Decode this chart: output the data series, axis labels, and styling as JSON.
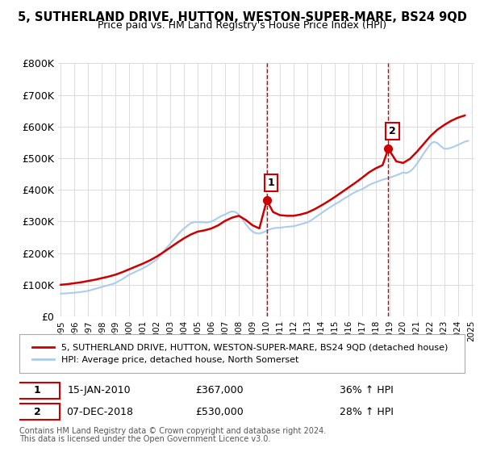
{
  "title": "5, SUTHERLAND DRIVE, HUTTON, WESTON-SUPER-MARE, BS24 9QD",
  "subtitle": "Price paid vs. HM Land Registry's House Price Index (HPI)",
  "ylabel": "",
  "xlabel": "",
  "ylim": [
    0,
    800000
  ],
  "yticks": [
    0,
    100000,
    200000,
    300000,
    400000,
    500000,
    600000,
    700000,
    800000
  ],
  "ytick_labels": [
    "£0",
    "£100K",
    "£200K",
    "£300K",
    "£400K",
    "£500K",
    "£600K",
    "£700K",
    "£800K"
  ],
  "background_color": "#ffffff",
  "grid_color": "#dddddd",
  "line1_color": "#cc0000",
  "line2_color": "#aaccee",
  "marker_color": "#cc0000",
  "vline_color": "#cc0000",
  "legend_label1": "5, SUTHERLAND DRIVE, HUTTON, WESTON-SUPER-MARE, BS24 9QD (detached house)",
  "legend_label2": "HPI: Average price, detached house, North Somerset",
  "sale1_date": 2010.04,
  "sale1_price": 367000,
  "sale1_label": "15-JAN-2010",
  "sale1_amount": "£367,000",
  "sale1_hpi": "36% ↑ HPI",
  "sale2_date": 2018.92,
  "sale2_price": 530000,
  "sale2_label": "07-DEC-2018",
  "sale2_amount": "£530,000",
  "sale2_hpi": "28% ↑ HPI",
  "footnote1": "Contains HM Land Registry data © Crown copyright and database right 2024.",
  "footnote2": "This data is licensed under the Open Government Licence v3.0.",
  "hpi_x": [
    1995.0,
    1995.25,
    1995.5,
    1995.75,
    1996.0,
    1996.25,
    1996.5,
    1996.75,
    1997.0,
    1997.25,
    1997.5,
    1997.75,
    1998.0,
    1998.25,
    1998.5,
    1998.75,
    1999.0,
    1999.25,
    1999.5,
    1999.75,
    2000.0,
    2000.25,
    2000.5,
    2000.75,
    2001.0,
    2001.25,
    2001.5,
    2001.75,
    2002.0,
    2002.25,
    2002.5,
    2002.75,
    2003.0,
    2003.25,
    2003.5,
    2003.75,
    2004.0,
    2004.25,
    2004.5,
    2004.75,
    2005.0,
    2005.25,
    2005.5,
    2005.75,
    2006.0,
    2006.25,
    2006.5,
    2006.75,
    2007.0,
    2007.25,
    2007.5,
    2007.75,
    2008.0,
    2008.25,
    2008.5,
    2008.75,
    2009.0,
    2009.25,
    2009.5,
    2009.75,
    2010.0,
    2010.25,
    2010.5,
    2010.75,
    2011.0,
    2011.25,
    2011.5,
    2011.75,
    2012.0,
    2012.25,
    2012.5,
    2012.75,
    2013.0,
    2013.25,
    2013.5,
    2013.75,
    2014.0,
    2014.25,
    2014.5,
    2014.75,
    2015.0,
    2015.25,
    2015.5,
    2015.75,
    2016.0,
    2016.25,
    2016.5,
    2016.75,
    2017.0,
    2017.25,
    2017.5,
    2017.75,
    2018.0,
    2018.25,
    2018.5,
    2018.75,
    2019.0,
    2019.25,
    2019.5,
    2019.75,
    2020.0,
    2020.25,
    2020.5,
    2020.75,
    2021.0,
    2021.25,
    2021.5,
    2021.75,
    2022.0,
    2022.25,
    2022.5,
    2022.75,
    2023.0,
    2023.25,
    2023.5,
    2023.75,
    2024.0,
    2024.25,
    2024.5,
    2024.75
  ],
  "hpi_y": [
    72000,
    72500,
    73000,
    74000,
    75000,
    76000,
    77500,
    79000,
    81000,
    84000,
    87000,
    90000,
    93000,
    96000,
    99000,
    102000,
    106000,
    112000,
    118000,
    125000,
    132000,
    137000,
    142000,
    147000,
    152000,
    158000,
    165000,
    172000,
    180000,
    192000,
    205000,
    218000,
    230000,
    243000,
    256000,
    268000,
    278000,
    287000,
    295000,
    298000,
    298000,
    298000,
    297000,
    297000,
    300000,
    305000,
    312000,
    318000,
    322000,
    328000,
    332000,
    330000,
    322000,
    308000,
    292000,
    278000,
    268000,
    263000,
    262000,
    265000,
    270000,
    275000,
    278000,
    280000,
    280000,
    282000,
    283000,
    284000,
    285000,
    288000,
    291000,
    294000,
    297000,
    303000,
    310000,
    318000,
    325000,
    333000,
    340000,
    347000,
    354000,
    360000,
    367000,
    374000,
    380000,
    387000,
    393000,
    398000,
    402000,
    408000,
    415000,
    420000,
    424000,
    428000,
    432000,
    435000,
    438000,
    442000,
    446000,
    450000,
    455000,
    453000,
    458000,
    468000,
    482000,
    498000,
    515000,
    530000,
    545000,
    552000,
    548000,
    538000,
    530000,
    530000,
    533000,
    537000,
    542000,
    547000,
    552000,
    555000
  ],
  "prop_x": [
    1995.0,
    1995.5,
    1996.0,
    1996.5,
    1997.0,
    1997.5,
    1998.0,
    1998.5,
    1999.0,
    1999.5,
    2000.0,
    2000.5,
    2001.0,
    2001.5,
    2002.0,
    2002.5,
    2003.0,
    2003.5,
    2004.0,
    2004.5,
    2005.0,
    2005.5,
    2006.0,
    2006.5,
    2007.0,
    2007.5,
    2008.0,
    2008.5,
    2009.0,
    2009.5,
    2010.04,
    2010.5,
    2011.0,
    2011.5,
    2012.0,
    2012.5,
    2013.0,
    2013.5,
    2014.0,
    2014.5,
    2015.0,
    2015.5,
    2016.0,
    2016.5,
    2017.0,
    2017.5,
    2018.0,
    2018.5,
    2018.92,
    2019.5,
    2020.0,
    2020.5,
    2021.0,
    2021.5,
    2022.0,
    2022.5,
    2023.0,
    2023.5,
    2024.0,
    2024.5
  ],
  "prop_y": [
    100000,
    102000,
    105000,
    108000,
    112000,
    116000,
    121000,
    126000,
    132000,
    140000,
    149000,
    158000,
    167000,
    177000,
    189000,
    203000,
    218000,
    233000,
    247000,
    259000,
    268000,
    272000,
    278000,
    288000,
    302000,
    312000,
    318000,
    305000,
    288000,
    278000,
    367000,
    330000,
    320000,
    318000,
    318000,
    322000,
    328000,
    338000,
    350000,
    363000,
    377000,
    392000,
    407000,
    422000,
    438000,
    455000,
    468000,
    478000,
    530000,
    490000,
    485000,
    498000,
    520000,
    545000,
    570000,
    590000,
    605000,
    618000,
    628000,
    635000
  ],
  "xtick_years": [
    1995,
    1996,
    1997,
    1998,
    1999,
    2000,
    2001,
    2002,
    2003,
    2004,
    2005,
    2006,
    2007,
    2008,
    2009,
    2010,
    2011,
    2012,
    2013,
    2014,
    2015,
    2016,
    2017,
    2018,
    2019,
    2020,
    2021,
    2022,
    2023,
    2024,
    2025
  ]
}
